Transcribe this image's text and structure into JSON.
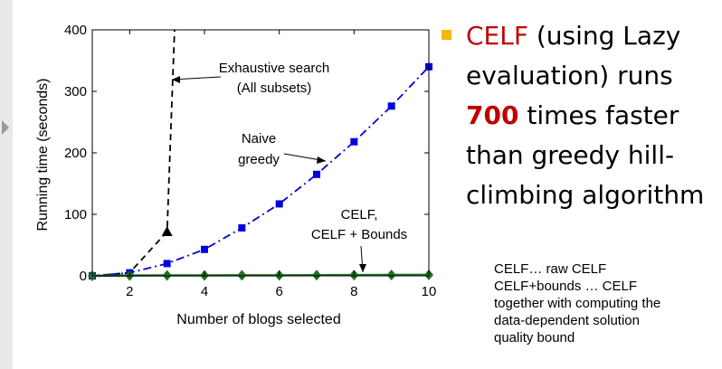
{
  "slide": {
    "bullet": {
      "term": "CELF",
      "text_1": " (using Lazy evaluation) runs ",
      "number": "700",
      "text_2": " times faster than greedy hill-climbing algorithm"
    },
    "note_lines": [
      "CELF… raw CELF",
      "CELF+bounds … CELF",
      "together with computing the",
      "data-dependent solution",
      "quality bound"
    ],
    "colors": {
      "accent": "#c00000",
      "bullet": "#f5b800"
    }
  },
  "chart_data": {
    "type": "line",
    "xlabel": "Number of blogs selected",
    "ylabel": "Running time (seconds)",
    "xlim": [
      1,
      10
    ],
    "ylim": [
      0,
      400
    ],
    "xticks": [
      2,
      4,
      6,
      8,
      10
    ],
    "yticks": [
      0,
      100,
      200,
      300,
      400
    ],
    "grid": false,
    "series": [
      {
        "id": "exhaustive",
        "x": [
          1,
          2,
          3,
          3,
          3.2
        ],
        "y": [
          0,
          5,
          72,
          72,
          400
        ],
        "color": "#000000",
        "style": "dashed",
        "marker": "triangle",
        "marker_indices": [
          2
        ]
      },
      {
        "id": "naive",
        "x": [
          1,
          2,
          3,
          4,
          5,
          6,
          7,
          8,
          9,
          10
        ],
        "y": [
          0,
          5,
          20,
          43,
          78,
          117,
          165,
          218,
          276,
          340
        ],
        "color": "#0000dd",
        "style": "dashdot",
        "marker": "square"
      },
      {
        "id": "celf",
        "x": [
          1,
          2,
          3,
          4,
          5,
          6,
          7,
          8,
          9,
          10
        ],
        "y": [
          0,
          0.5,
          0.7,
          0.8,
          0.9,
          1,
          1.1,
          1.3,
          1.5,
          1.7
        ],
        "color": "#1f6f1f",
        "style": "solid",
        "marker": "diamond"
      }
    ],
    "annotations": [
      {
        "id": "exhaustive",
        "lines": [
          "Exhaustive search",
          "(All subsets)"
        ]
      },
      {
        "id": "naive",
        "lines": [
          "Naive",
          "greedy"
        ]
      },
      {
        "id": "celf",
        "lines": [
          "CELF,",
          "CELF + Bounds"
        ]
      }
    ]
  }
}
